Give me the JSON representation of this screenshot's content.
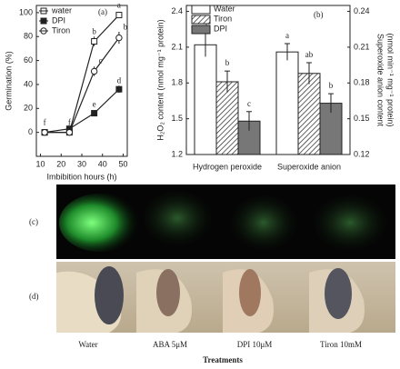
{
  "chart_data": [
    {
      "type": "line",
      "panel": "(a)",
      "x_label": "Imbibition hours (h)",
      "y_label": "Germination (%)",
      "xlim": [
        8,
        52
      ],
      "xticks": [
        10,
        20,
        30,
        40,
        50
      ],
      "ylim": [
        -20,
        106
      ],
      "yticks": [
        0,
        20,
        40,
        60,
        80,
        100
      ],
      "legend": "upper-left",
      "x": [
        12,
        24,
        36,
        48
      ],
      "series": [
        {
          "name": "water",
          "color": "#222",
          "marker": "open-square",
          "values": [
            0,
            0,
            76,
            98
          ],
          "errors": [
            1,
            1,
            4,
            2
          ],
          "labels": [
            "f",
            "f",
            "b",
            "a"
          ]
        },
        {
          "name": "DPI",
          "color": "#222",
          "marker": "filled-square",
          "values": [
            0,
            3,
            16,
            36
          ],
          "errors": [
            1,
            1,
            2,
            3
          ],
          "labels": [
            null,
            null,
            "e",
            "d"
          ]
        },
        {
          "name": "Tiron",
          "color": "#222",
          "marker": "open-circle",
          "values": [
            0,
            0,
            51,
            79
          ],
          "errors": [
            1,
            1,
            4,
            5
          ],
          "labels": [
            null,
            null,
            "c",
            "b"
          ]
        }
      ]
    },
    {
      "type": "bar",
      "panel": "(b)",
      "y_label": "H₂O₂ content (nmol mg⁻¹ protein)",
      "y2_label": [
        "Superoxide anion content",
        "(nmol min⁻¹ mg⁻¹ protein)"
      ],
      "categories": [
        "Hydrogen peroxide",
        "Superoxide anion"
      ],
      "category_axis": [
        "y",
        "y2"
      ],
      "ylim": [
        1.2,
        2.45
      ],
      "yticks": [
        1.2,
        1.5,
        1.8,
        2.1,
        2.4
      ],
      "y2lim": [
        0.12,
        0.245
      ],
      "y2ticks": [
        0.12,
        0.15,
        0.18,
        0.21,
        0.24
      ],
      "legend": "upper-left",
      "series": [
        {
          "name": "Water",
          "color": "#ffffff",
          "hatch": false,
          "values": [
            2.12,
            0.206
          ],
          "errors": [
            0.1,
            0.007
          ],
          "labels": [
            "a",
            "a"
          ]
        },
        {
          "name": "Tiron",
          "color": "#ffffff",
          "hatch": true,
          "values": [
            1.81,
            0.188
          ],
          "errors": [
            0.09,
            0.009
          ],
          "labels": [
            "b",
            "ab"
          ]
        },
        {
          "name": "DPI",
          "color": "#777777",
          "hatch": false,
          "values": [
            1.48,
            0.163
          ],
          "errors": [
            0.08,
            0.008
          ],
          "labels": [
            "c",
            "b"
          ]
        }
      ]
    }
  ],
  "images": {
    "panel_c": "(c)",
    "panel_d": "(d)",
    "treatments": [
      "Water",
      "ABA 5μM",
      "DPI 10μM",
      "Tiron 10mM"
    ],
    "x_label": "Treatments"
  }
}
